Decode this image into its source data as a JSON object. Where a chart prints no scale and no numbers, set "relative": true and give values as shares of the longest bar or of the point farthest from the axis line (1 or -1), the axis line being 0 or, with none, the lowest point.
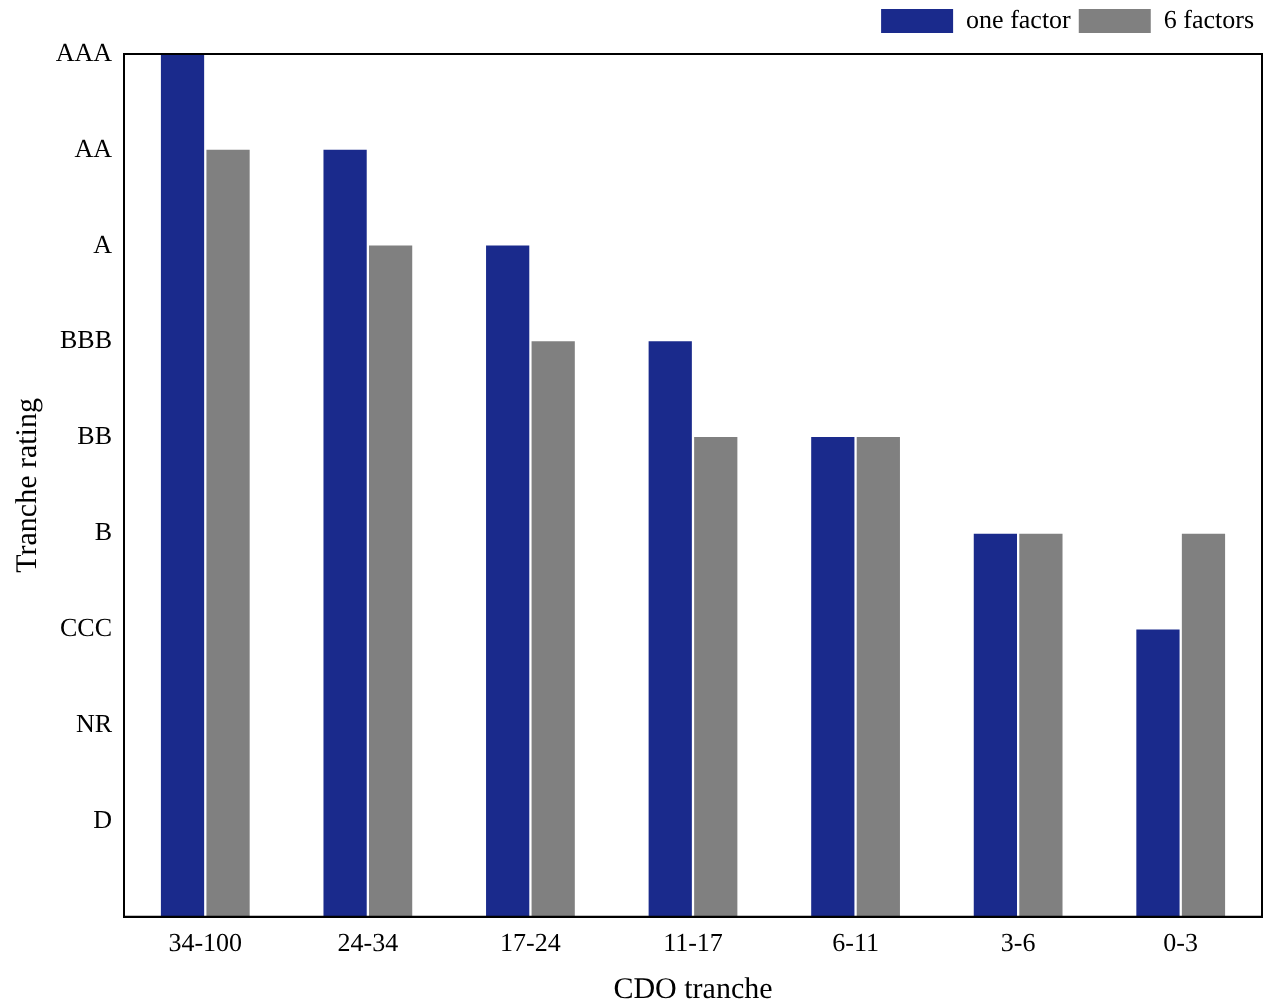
{
  "chart_data": {
    "type": "bar",
    "xlabel": "CDO tranche",
    "ylabel": "Tranche rating",
    "relative": true,
    "categories": [
      "34-100",
      "24-34",
      "17-24",
      "11-17",
      "6-11",
      "3-6",
      "0-3"
    ],
    "series": [
      {
        "name": "one factor",
        "color": "#1a2a8c",
        "values": [
          1,
          0.889,
          0.778,
          0.667,
          0.556,
          0.444,
          0.333
        ]
      },
      {
        "name": "6 factors",
        "color": "#808080",
        "values": [
          0.889,
          0.778,
          0.667,
          0.556,
          0.556,
          0.444,
          0.444
        ]
      }
    ],
    "annotations": [
      "D",
      "NR",
      "CCC",
      "B",
      "BB",
      "BBB",
      "A",
      "AA",
      "AAA"
    ],
    "legend": "top right",
    "grid": false
  }
}
